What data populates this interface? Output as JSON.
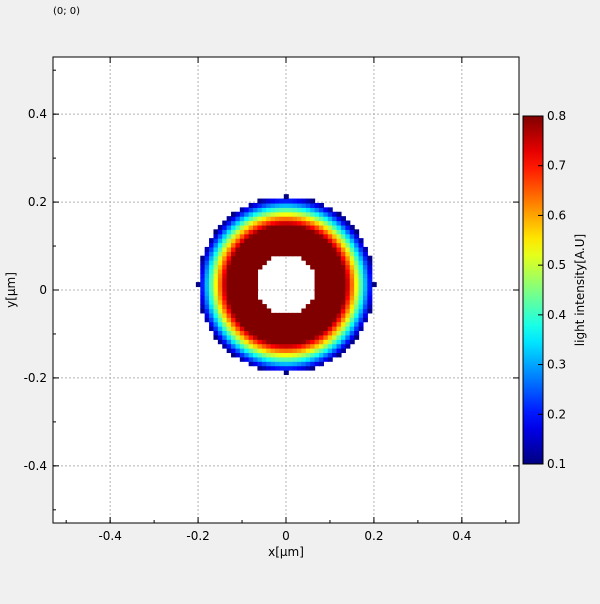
{
  "coord_readout": "(0; 0)",
  "chart_data": {
    "type": "heatmap",
    "description_free": true,
    "xlabel": "x[µm]",
    "ylabel": "y[µm]",
    "xlim": [
      -0.53,
      0.53
    ],
    "ylim": [
      -0.53,
      0.53
    ],
    "xticks": [
      -0.4,
      -0.2,
      0,
      0.2,
      0.4
    ],
    "yticks": [
      -0.4,
      -0.2,
      0,
      0.2,
      0.4
    ],
    "xtick_labels": [
      "-0.4",
      "-0.2",
      "0",
      "0.2",
      "0.4"
    ],
    "ytick_labels": [
      "-0.4",
      "-0.2",
      "0",
      "0.2",
      "0.4"
    ],
    "grid": true,
    "colormap": "jet",
    "colorbar": {
      "label": "light intensity[A.U]",
      "min": 0.1,
      "max": 0.8,
      "ticks": [
        0.1,
        0.2,
        0.3,
        0.4,
        0.5,
        0.6,
        0.7,
        0.8
      ],
      "tick_labels": [
        "0.1",
        "0.2",
        "0.3",
        "0.4",
        "0.5",
        "0.6",
        "0.7",
        "0.8"
      ]
    },
    "field": {
      "shape": "annulus",
      "center": [
        0,
        0.013
      ],
      "inner_radius": 0.07,
      "outer_radius": 0.2,
      "peak_value": 0.8,
      "edge_value": 0.1,
      "grid_step": 0.01
    }
  }
}
